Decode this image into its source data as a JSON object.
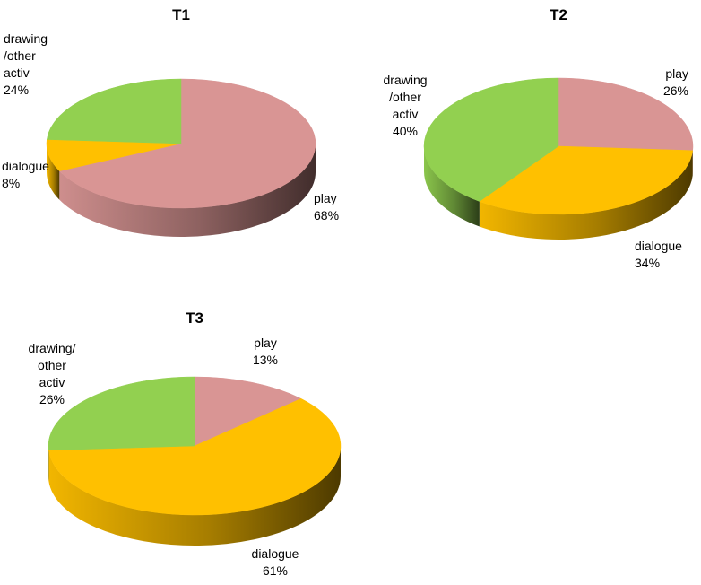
{
  "colors": {
    "play": "#d99594",
    "dialogue": "#ffc000",
    "drawing": "#92d050"
  },
  "chart_data": [
    {
      "type": "pie",
      "title": "T1",
      "slices": [
        {
          "key": "play",
          "label": [
            "play",
            "68%"
          ],
          "value": 68
        },
        {
          "key": "dialogue",
          "label": [
            "dialogue",
            "8%"
          ],
          "value": 8
        },
        {
          "key": "drawing",
          "label": [
            "drawing",
            "/other",
            "activ",
            "24%"
          ],
          "value": 24
        }
      ]
    },
    {
      "type": "pie",
      "title": "T2",
      "slices": [
        {
          "key": "play",
          "label": [
            "play",
            "26%"
          ],
          "value": 26
        },
        {
          "key": "dialogue",
          "label": [
            "dialogue",
            "34%"
          ],
          "value": 34
        },
        {
          "key": "drawing",
          "label": [
            "drawing",
            "/other",
            "activ",
            "40%"
          ],
          "value": 40
        }
      ]
    },
    {
      "type": "pie",
      "title": "T3",
      "slices": [
        {
          "key": "play",
          "label": [
            "play",
            "13%"
          ],
          "value": 13
        },
        {
          "key": "dialogue",
          "label": [
            "dialogue",
            "61%"
          ],
          "value": 61
        },
        {
          "key": "drawing",
          "label": [
            "drawing/",
            "other",
            "activ",
            "26%"
          ],
          "value": 26
        }
      ]
    }
  ]
}
